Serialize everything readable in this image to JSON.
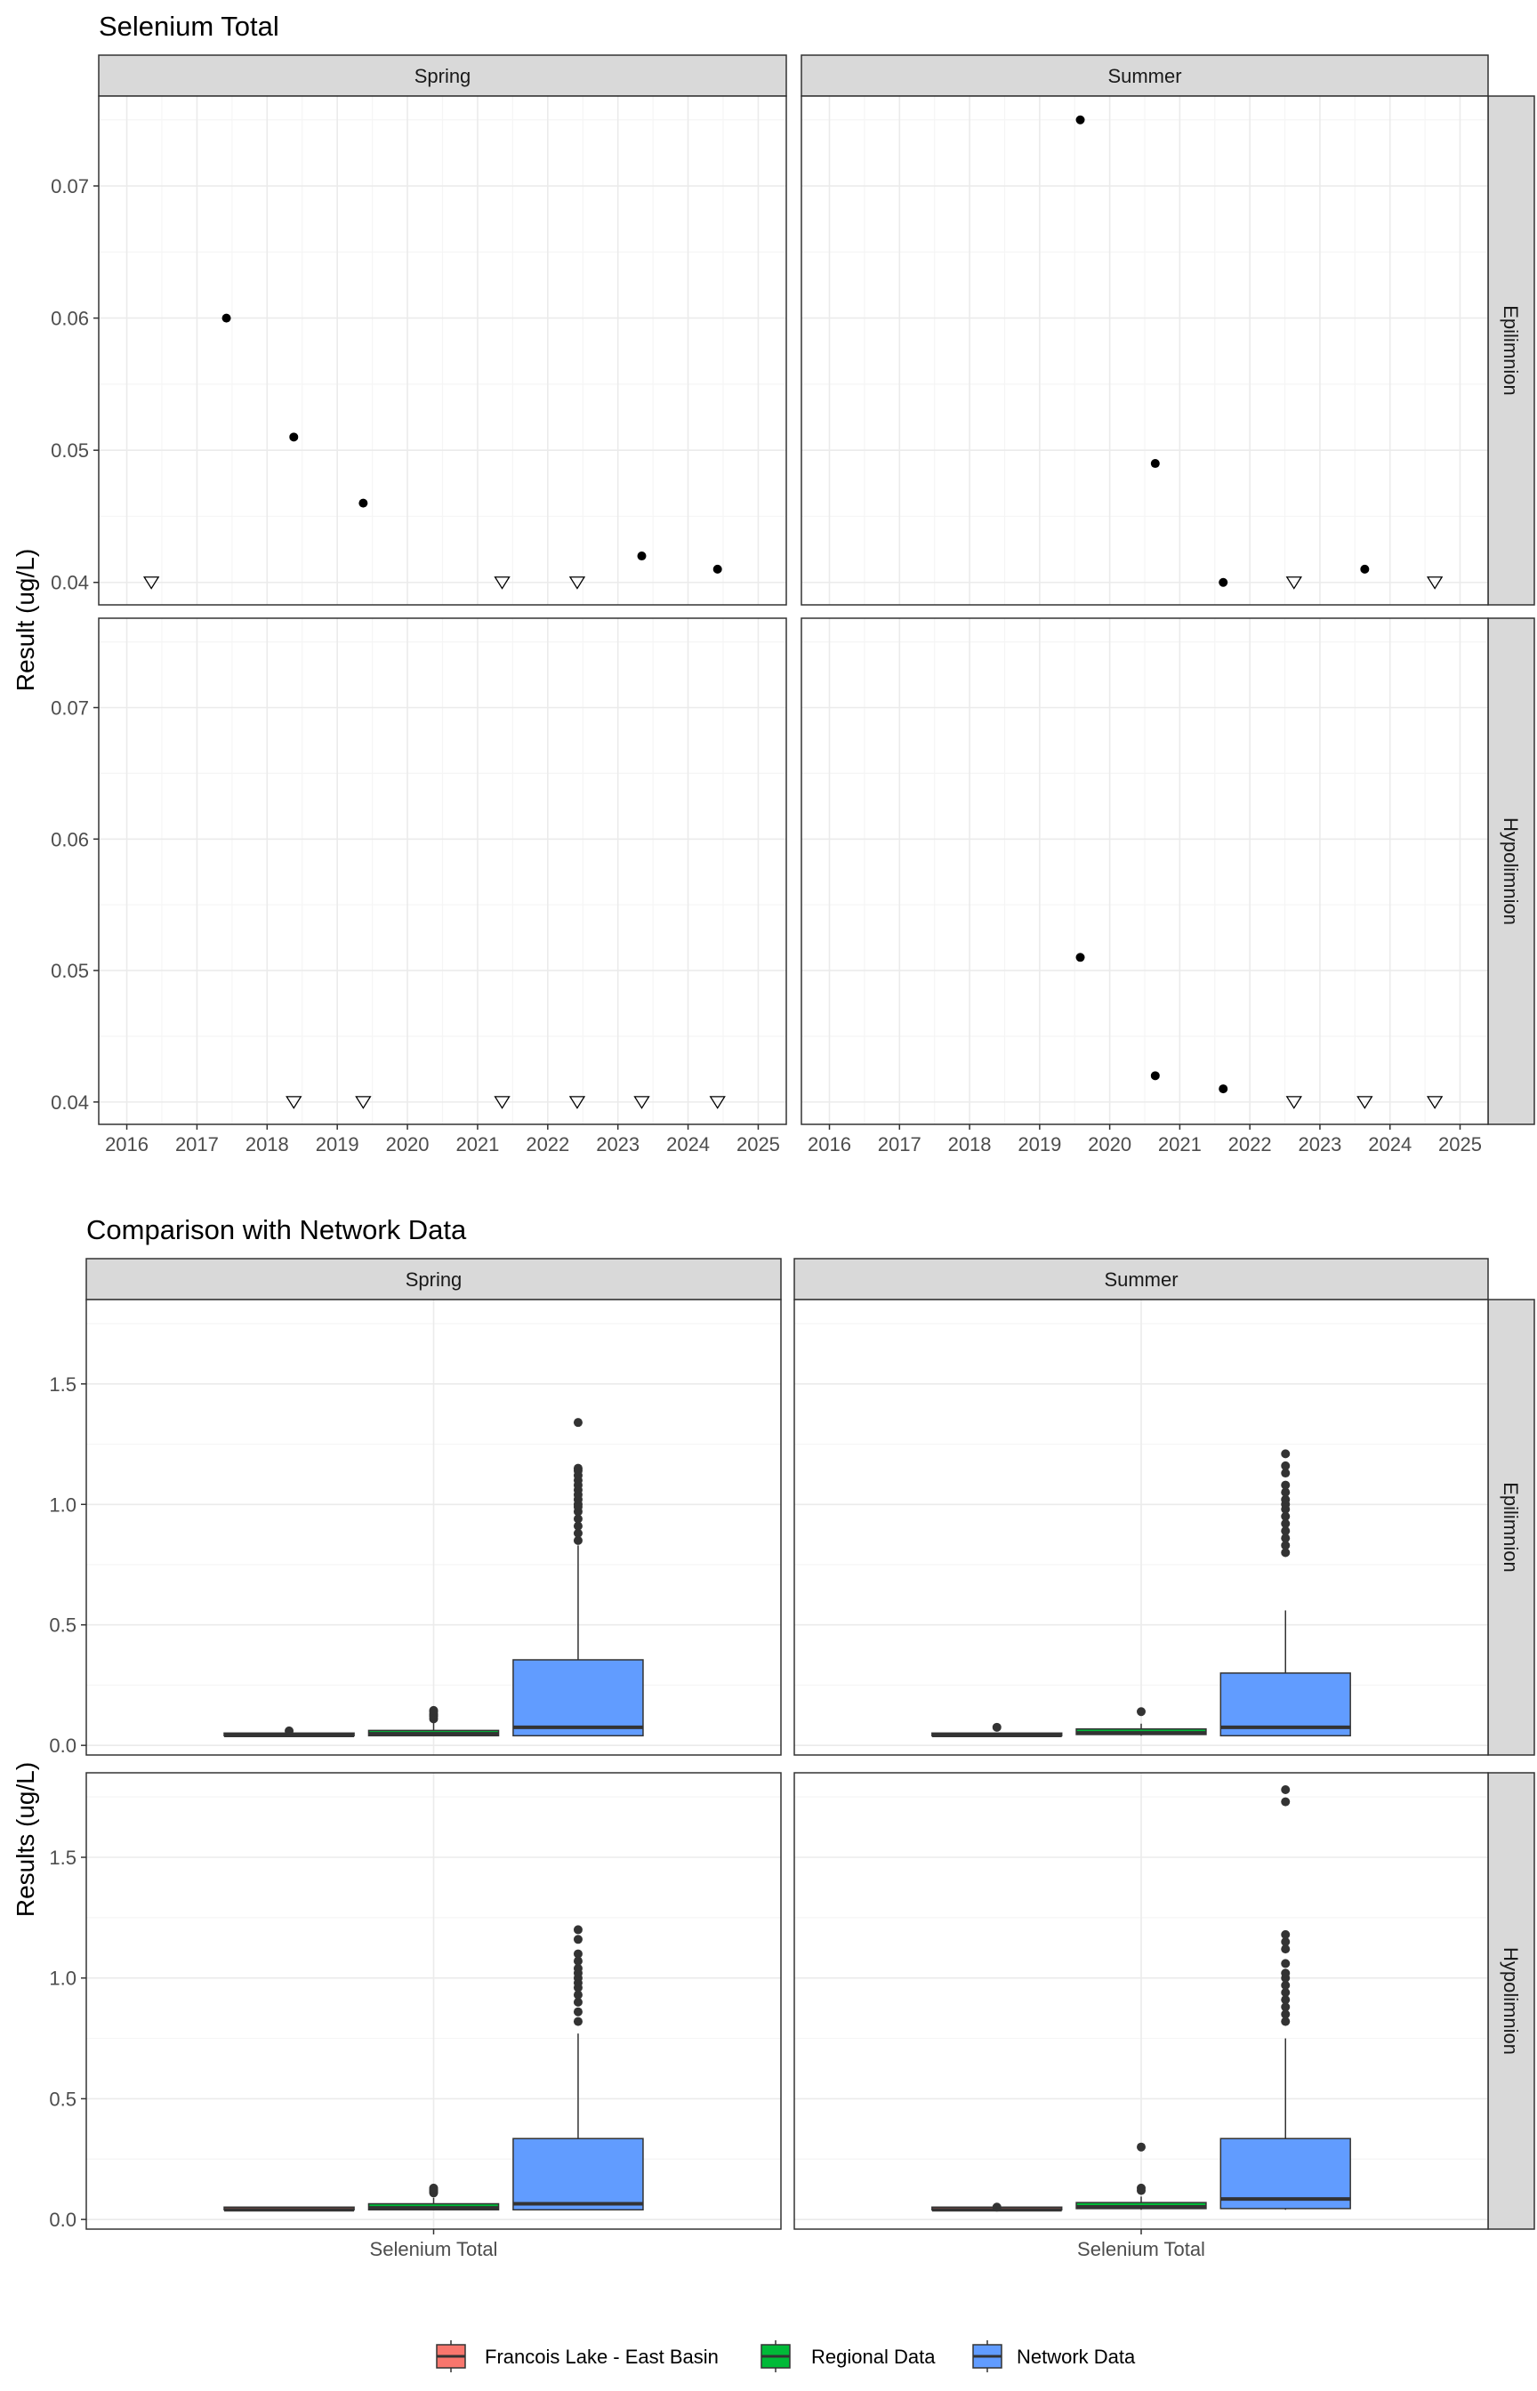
{
  "colors": {
    "strip_fill": "#D9D9D9",
    "panel_border": "#333333",
    "grid_major": "#EBEBEB",
    "grid_minor": "#F5F5F5",
    "point": "#000000",
    "box_line": "#333333",
    "francois": "#F8766D",
    "regional": "#00BA38",
    "network": "#619CFF"
  },
  "chart_data": [
    {
      "type": "scatter",
      "title": "Selenium Total",
      "ylabel": "Result (ug/L)",
      "xlabel": "",
      "columns": [
        "Spring",
        "Summer"
      ],
      "rows": [
        "Epilimnion",
        "Hypolimnion"
      ],
      "xlim": [
        2015.6,
        2025.4
      ],
      "ylim": [
        0.0383,
        0.0768
      ],
      "x_ticks": [
        2016,
        2017,
        2018,
        2019,
        2020,
        2021,
        2022,
        2023,
        2024,
        2025
      ],
      "x_tick_labels": [
        "2016",
        "2017",
        "2018",
        "2019",
        "2020",
        "2021",
        "2022",
        "2023",
        "2024",
        "2025"
      ],
      "y_ticks": [
        0.04,
        0.05,
        0.06,
        0.07
      ],
      "y_tick_labels": [
        "0.04",
        "0.05",
        "0.06",
        "0.07"
      ],
      "grid": true,
      "panels": [
        {
          "column": "Spring",
          "row": "Epilimnion",
          "detected": [
            [
              2017.42,
              0.06
            ],
            [
              2018.38,
              0.051
            ],
            [
              2019.37,
              0.046
            ],
            [
              2023.34,
              0.042
            ],
            [
              2024.42,
              0.041
            ]
          ],
          "below_detection": [
            [
              2016.35,
              0.04
            ],
            [
              2021.35,
              0.04
            ],
            [
              2022.42,
              0.04
            ]
          ]
        },
        {
          "column": "Summer",
          "row": "Epilimnion",
          "detected": [
            [
              2019.58,
              0.075
            ],
            [
              2020.65,
              0.049
            ],
            [
              2021.62,
              0.04
            ],
            [
              2023.64,
              0.041
            ]
          ],
          "below_detection": [
            [
              2022.63,
              0.04
            ],
            [
              2024.64,
              0.04
            ]
          ]
        },
        {
          "column": "Spring",
          "row": "Hypolimnion",
          "detected": [],
          "below_detection": [
            [
              2018.38,
              0.04
            ],
            [
              2019.37,
              0.04
            ],
            [
              2021.35,
              0.04
            ],
            [
              2022.42,
              0.04
            ],
            [
              2023.34,
              0.04
            ],
            [
              2024.42,
              0.04
            ]
          ]
        },
        {
          "column": "Summer",
          "row": "Hypolimnion",
          "detected": [
            [
              2019.58,
              0.051
            ],
            [
              2020.65,
              0.042
            ],
            [
              2021.62,
              0.041
            ]
          ],
          "below_detection": [
            [
              2022.63,
              0.04
            ],
            [
              2023.64,
              0.04
            ],
            [
              2024.64,
              0.04
            ]
          ]
        }
      ]
    },
    {
      "type": "box",
      "title": "Comparison with Network Data",
      "ylabel": "Results (ug/L)",
      "xlabel": "",
      "columns": [
        "Spring",
        "Summer"
      ],
      "rows": [
        "Epilimnion",
        "Hypolimnion"
      ],
      "category": "Selenium Total",
      "ylim": [
        -0.04,
        1.85
      ],
      "y_ticks": [
        0.0,
        0.5,
        1.0,
        1.5
      ],
      "y_tick_labels": [
        "0.0",
        "0.5",
        "1.0",
        "1.5"
      ],
      "grid": true,
      "legend_position": "bottom",
      "legend": [
        {
          "name": "Francois Lake - East Basin",
          "color": "#F8766D"
        },
        {
          "name": "Regional Data",
          "color": "#00BA38"
        },
        {
          "name": "Network Data",
          "color": "#619CFF"
        }
      ],
      "panels": [
        {
          "column": "Spring",
          "row": "Epilimnion",
          "boxes": [
            {
              "group": "Francois Lake - East Basin",
              "min": 0.04,
              "q1": 0.04,
              "median": 0.041,
              "q3": 0.043,
              "max": 0.046,
              "outliers": [
                0.06
              ]
            },
            {
              "group": "Regional Data",
              "min": 0.04,
              "q1": 0.04,
              "median": 0.048,
              "q3": 0.062,
              "max": 0.094,
              "outliers": [
                0.11,
                0.12,
                0.125,
                0.13,
                0.14,
                0.145
              ]
            },
            {
              "group": "Network Data",
              "min": 0.04,
              "q1": 0.04,
              "median": 0.075,
              "q3": 0.355,
              "max": 0.83,
              "outliers": [
                0.85,
                0.88,
                0.91,
                0.94,
                0.97,
                0.99,
                1.0,
                1.02,
                1.04,
                1.06,
                1.08,
                1.1,
                1.12,
                1.14,
                1.15,
                1.34
              ]
            }
          ]
        },
        {
          "column": "Summer",
          "row": "Epilimnion",
          "boxes": [
            {
              "group": "Francois Lake - East Basin",
              "min": 0.04,
              "q1": 0.04,
              "median": 0.041,
              "q3": 0.045,
              "max": 0.049,
              "outliers": [
                0.075
              ]
            },
            {
              "group": "Regional Data",
              "min": 0.04,
              "q1": 0.045,
              "median": 0.052,
              "q3": 0.068,
              "max": 0.09,
              "outliers": [
                0.14
              ]
            },
            {
              "group": "Network Data",
              "min": 0.04,
              "q1": 0.04,
              "median": 0.075,
              "q3": 0.3,
              "max": 0.56,
              "outliers": [
                0.8,
                0.83,
                0.86,
                0.89,
                0.92,
                0.95,
                0.98,
                1.0,
                1.02,
                1.05,
                1.08,
                1.13,
                1.16,
                1.21
              ]
            }
          ]
        },
        {
          "column": "Spring",
          "row": "Hypolimnion",
          "boxes": [
            {
              "group": "Francois Lake - East Basin",
              "min": 0.04,
              "q1": 0.04,
              "median": 0.04,
              "q3": 0.04,
              "max": 0.04,
              "outliers": []
            },
            {
              "group": "Regional Data",
              "min": 0.04,
              "q1": 0.04,
              "median": 0.048,
              "q3": 0.065,
              "max": 0.09,
              "outliers": [
                0.11,
                0.115,
                0.12,
                0.125,
                0.13
              ]
            },
            {
              "group": "Network Data",
              "min": 0.04,
              "q1": 0.04,
              "median": 0.065,
              "q3": 0.335,
              "max": 0.77,
              "outliers": [
                0.82,
                0.86,
                0.9,
                0.93,
                0.96,
                0.98,
                1.0,
                1.02,
                1.04,
                1.07,
                1.1,
                1.16,
                1.2
              ]
            }
          ]
        },
        {
          "column": "Summer",
          "row": "Hypolimnion",
          "boxes": [
            {
              "group": "Francois Lake - East Basin",
              "min": 0.04,
              "q1": 0.04,
              "median": 0.04,
              "q3": 0.041,
              "max": 0.042,
              "outliers": [
                0.051
              ]
            },
            {
              "group": "Regional Data",
              "min": 0.04,
              "q1": 0.045,
              "median": 0.052,
              "q3": 0.07,
              "max": 0.095,
              "outliers": [
                0.12,
                0.13,
                0.3
              ]
            },
            {
              "group": "Network Data",
              "min": 0.04,
              "q1": 0.045,
              "median": 0.085,
              "q3": 0.335,
              "max": 0.75,
              "outliers": [
                0.82,
                0.85,
                0.88,
                0.91,
                0.94,
                0.97,
                1.0,
                1.02,
                1.06,
                1.12,
                1.15,
                1.18,
                1.73,
                1.78
              ]
            }
          ]
        }
      ]
    }
  ]
}
